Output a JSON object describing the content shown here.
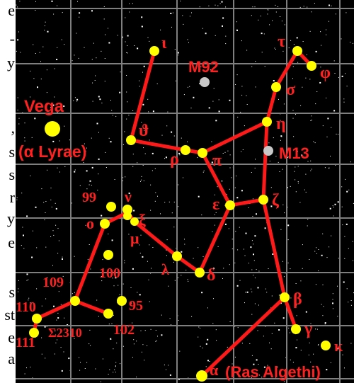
{
  "left_text_fragments": [
    "e",
    "-",
    "y",
    ",",
    "s",
    "s",
    "r",
    "y",
    "e",
    "s",
    "st",
    "e",
    "a"
  ],
  "colors": {
    "background": "#000000",
    "grid": "#7f7f7f",
    "constellation_lines": "#ff1a1a",
    "labels": "#ff2020",
    "stars": "#ffff00",
    "clusters": "#c8c8c8",
    "field_stars": "#ffffff"
  },
  "star_labels": {
    "iota": "ι",
    "tau": "τ",
    "phi": "φ",
    "sigma": "σ",
    "eta": "η",
    "theta": "ϑ",
    "rho": "ρ",
    "pi": "π",
    "epsilon": "ε",
    "zeta": "ζ",
    "nu": "ν",
    "xi": "ξ",
    "omicron": "o",
    "mu": "μ",
    "lambda": "λ",
    "delta": "δ",
    "beta": "β",
    "gamma": "γ",
    "kappa": "κ",
    "alpha": "α",
    "n99": "99",
    "n100": "100",
    "n109": "109",
    "n110": "110",
    "n111": "111",
    "n95": "95",
    "n102": "102",
    "sigma2310": "Σ2310"
  },
  "object_labels": {
    "vega": "Vega",
    "alpha_lyrae": "(α Lyrae)",
    "m92": "M92",
    "m13": "M13",
    "ras_algethi": "(Ras Algethi)"
  }
}
